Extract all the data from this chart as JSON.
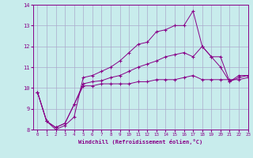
{
  "title": "",
  "xlabel": "Windchill (Refroidissement éolien,°C)",
  "ylabel": "",
  "background_color": "#c8ecec",
  "grid_color": "#aaaacc",
  "line_color": "#880088",
  "xlim": [
    -0.5,
    23
  ],
  "ylim": [
    8,
    14
  ],
  "yticks": [
    8,
    9,
    10,
    11,
    12,
    13,
    14
  ],
  "xticks": [
    0,
    1,
    2,
    3,
    4,
    5,
    6,
    7,
    8,
    9,
    10,
    11,
    12,
    13,
    14,
    15,
    16,
    17,
    18,
    19,
    20,
    21,
    22,
    23
  ],
  "line1_x": [
    0,
    1,
    2,
    3,
    4,
    5,
    6,
    7,
    8,
    9,
    10,
    11,
    12,
    13,
    14,
    15,
    16,
    17,
    18,
    19,
    20,
    21,
    22,
    23
  ],
  "line1_y": [
    9.8,
    8.4,
    8.0,
    8.2,
    8.6,
    10.5,
    10.6,
    10.8,
    11.0,
    11.3,
    11.7,
    12.1,
    12.2,
    12.7,
    12.8,
    13.0,
    13.0,
    13.7,
    12.0,
    11.5,
    11.0,
    10.3,
    10.6,
    10.6
  ],
  "line2_x": [
    0,
    1,
    2,
    3,
    4,
    5,
    6,
    7,
    8,
    9,
    10,
    11,
    12,
    13,
    14,
    15,
    16,
    17,
    18,
    19,
    20,
    21,
    22,
    23
  ],
  "line2_y": [
    9.8,
    8.4,
    8.1,
    8.3,
    9.2,
    10.1,
    10.1,
    10.2,
    10.2,
    10.2,
    10.2,
    10.3,
    10.3,
    10.4,
    10.4,
    10.4,
    10.5,
    10.6,
    10.4,
    10.4,
    10.4,
    10.4,
    10.4,
    10.5
  ],
  "line3_x": [
    0,
    1,
    2,
    3,
    4,
    5,
    6,
    7,
    8,
    9,
    10,
    11,
    12,
    13,
    14,
    15,
    16,
    17,
    18,
    19,
    20,
    21,
    22,
    23
  ],
  "line3_y": [
    9.8,
    8.4,
    8.1,
    8.3,
    9.2,
    10.2,
    10.3,
    10.35,
    10.5,
    10.6,
    10.8,
    11.0,
    11.15,
    11.3,
    11.5,
    11.6,
    11.7,
    11.5,
    12.0,
    11.5,
    11.5,
    10.3,
    10.5,
    10.6
  ]
}
